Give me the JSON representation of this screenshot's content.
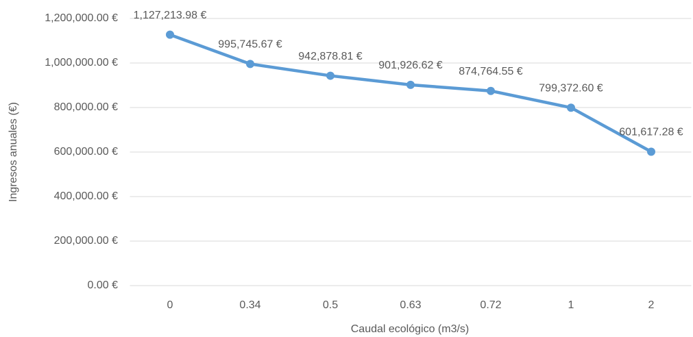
{
  "chart_data": {
    "type": "line",
    "x_label": "Caudal ecológico (m3/s)",
    "y_label": "Ingresos anuales (€)",
    "categories": [
      "0",
      "0.34",
      "0.5",
      "0.63",
      "0.72",
      "1",
      "2"
    ],
    "series": [
      {
        "color": "#5b9bd5",
        "values": [
          1127213.98,
          995745.67,
          942878.81,
          901926.62,
          874764.55,
          799372.6,
          601617.28
        ],
        "value_labels": [
          "1,127,213.98 €",
          "995,745.67 €",
          "942,878.81 €",
          "901,926.62 €",
          "874,764.55 €",
          "799,372.60 €",
          "601,617.28 €"
        ]
      }
    ],
    "ylim": [
      0,
      1200000
    ],
    "yticks": [
      {
        "value": 0,
        "label": "0.00 €"
      },
      {
        "value": 200000,
        "label": "200,000.00 €"
      },
      {
        "value": 400000,
        "label": "400,000.00 €"
      },
      {
        "value": 600000,
        "label": "600,000.00 €"
      },
      {
        "value": 800000,
        "label": "800,000.00 €"
      },
      {
        "value": 1000000,
        "label": "1,000,000.00 €"
      },
      {
        "value": 1200000,
        "label": "1,200,000.00 €"
      }
    ],
    "grid": true
  }
}
